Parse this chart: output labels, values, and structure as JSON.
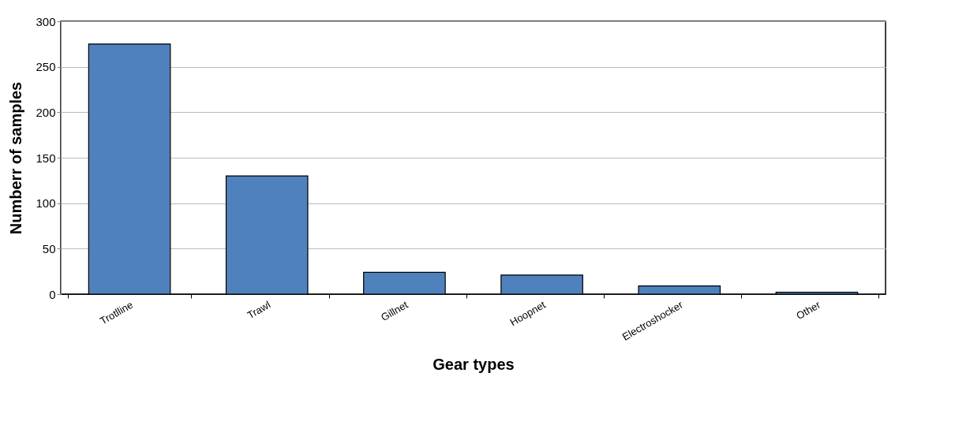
{
  "chart_data": {
    "type": "bar",
    "xlabel": "Gear types",
    "ylabel": "Numberr of samples",
    "categories": [
      "Trotlline",
      "Trawl",
      "Gillnet",
      "Hoopnet",
      "Electroshocker",
      "Other"
    ],
    "values": [
      275,
      130,
      24,
      21,
      9,
      2
    ],
    "color": "#4f81bd",
    "ylim": [
      0,
      300
    ],
    "yticks": [
      0,
      50,
      100,
      150,
      200,
      250,
      300
    ],
    "grid": "y"
  }
}
